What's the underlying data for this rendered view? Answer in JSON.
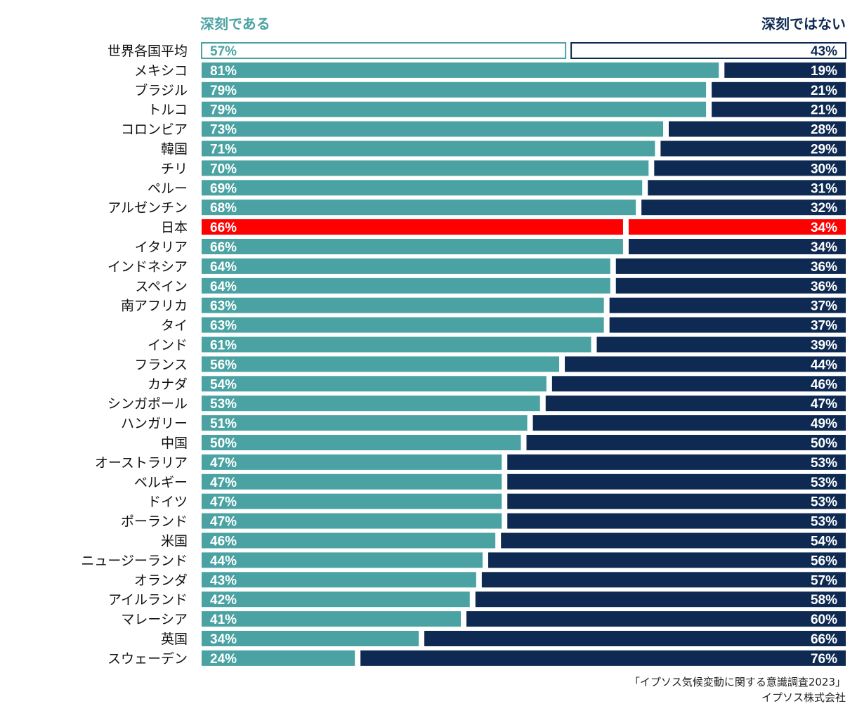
{
  "chart_data": {
    "type": "bar",
    "orientation": "horizontal-stacked-100",
    "legend": {
      "serious": "深刻である",
      "not_serious": "深刻ではない"
    },
    "categories": [
      "世界各国平均",
      "メキシコ",
      "ブラジル",
      "トルコ",
      "コロンビア",
      "韓国",
      "チリ",
      "ペルー",
      "アルゼンチン",
      "日本",
      "イタリア",
      "インドネシア",
      "スペイン",
      "南アフリカ",
      "タイ",
      "インド",
      "フランス",
      "カナダ",
      "シンガポール",
      "ハンガリー",
      "中国",
      "オーストラリア",
      "ベルギー",
      "ドイツ",
      "ポーランド",
      "米国",
      "ニュージーランド",
      "オランダ",
      "アイルランド",
      "マレーシア",
      "英国",
      "スウェーデン"
    ],
    "series": [
      {
        "name": "深刻である",
        "values": [
          57,
          81,
          79,
          79,
          73,
          71,
          70,
          69,
          68,
          66,
          66,
          64,
          64,
          63,
          63,
          61,
          56,
          54,
          53,
          51,
          50,
          47,
          47,
          47,
          47,
          46,
          44,
          43,
          42,
          41,
          34,
          24
        ]
      },
      {
        "name": "深刻ではない",
        "values": [
          43,
          19,
          21,
          21,
          28,
          29,
          30,
          31,
          32,
          34,
          34,
          36,
          36,
          37,
          37,
          39,
          44,
          46,
          47,
          49,
          50,
          53,
          53,
          53,
          53,
          54,
          56,
          57,
          58,
          60,
          66,
          76
        ]
      }
    ],
    "highlight": {
      "average": "世界各国平均",
      "focus": "日本"
    },
    "unit": "%",
    "colors": {
      "serious": "#4aa3a2",
      "not_serious": "#0e2a52",
      "highlight": "#ff0000",
      "average_outline_left": "#4aa3a2",
      "average_outline_right": "#0e2a52"
    }
  },
  "source": {
    "line1": "「イプソス気候変動に関する意識調査2023」",
    "line2": "イプソス株式会社"
  }
}
